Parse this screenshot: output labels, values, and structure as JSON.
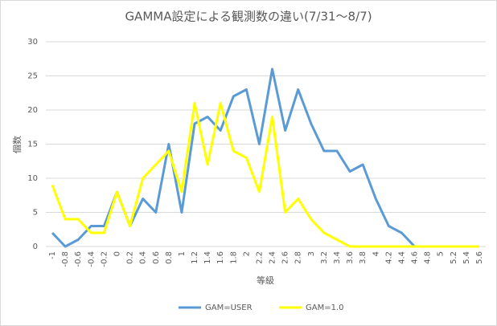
{
  "chart_data": {
    "type": "line",
    "title": "GAMMA設定による観測数の違い(7/31～8/7)",
    "y_label": "個数",
    "x_label": "等級",
    "categories": [
      "-1",
      "-0.8",
      "-0.6",
      "-0.4",
      "-0.2",
      "0",
      "0.2",
      "0.4",
      "0.6",
      "0.8",
      "1",
      "1.2",
      "1.4",
      "1.6",
      "1.8",
      "2",
      "2.2",
      "2.4",
      "2.6",
      "2.8",
      "3",
      "3.2",
      "3.4",
      "3.6",
      "3.8",
      "4",
      "4.2",
      "4.4",
      "4.6",
      "4.8",
      "5",
      "5.2",
      "5.4",
      "5.6"
    ],
    "series": [
      {
        "name": "GAM=USER",
        "color": "#5b9bd5",
        "values": [
          2,
          0,
          1,
          3,
          3,
          8,
          3,
          7,
          5,
          15,
          5,
          18,
          19,
          17,
          22,
          23,
          15,
          26,
          17,
          23,
          18,
          14,
          14,
          11,
          12,
          7,
          3,
          2,
          0,
          0,
          0,
          0,
          0,
          0
        ]
      },
      {
        "name": "GAM=1.0",
        "color": "#ffff00",
        "values": [
          9,
          4,
          4,
          2,
          2,
          8,
          3,
          10,
          12,
          14,
          8,
          21,
          12,
          21,
          14,
          13,
          8,
          19,
          5,
          7,
          4,
          2,
          1,
          0,
          0,
          0,
          0,
          0,
          0,
          0,
          0,
          0,
          0,
          0
        ]
      }
    ],
    "ylim": [
      0,
      30
    ],
    "yticks": [
      0,
      5,
      10,
      15,
      20,
      25,
      30
    ],
    "grid": true,
    "legend": "bottom"
  }
}
